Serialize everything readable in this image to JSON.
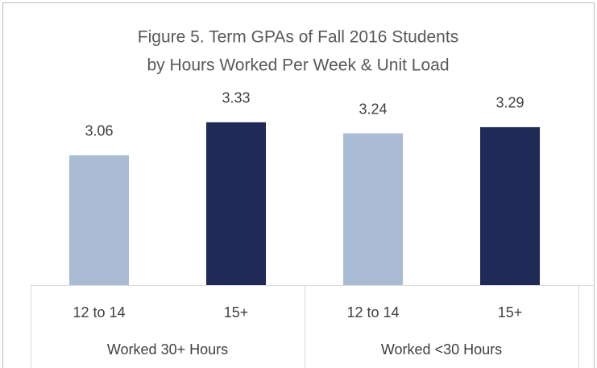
{
  "chart_data": {
    "type": "bar",
    "title": [
      "Figure 5. Term GPAs of Fall 2016 Students",
      "by Hours Worked Per Week & Unit Load"
    ],
    "categories": [
      "12 to 14",
      "15+",
      "12 to 14",
      "15+"
    ],
    "groups": [
      "Worked 30+ Hours",
      "Worked <30 Hours"
    ],
    "values": [
      3.06,
      3.33,
      3.24,
      3.29
    ],
    "colors": [
      "#a9bcd4",
      "#1f2a56",
      "#a9bcd4",
      "#1f2a56"
    ],
    "ylim": [
      2,
      3.5
    ]
  }
}
